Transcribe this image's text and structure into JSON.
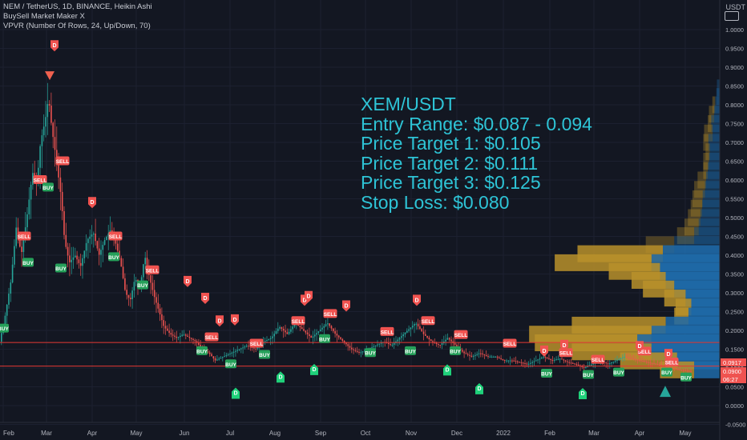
{
  "legend": {
    "symbol_line": "NEM / TetherUS, 1D, BINANCE, Heikin Ashi",
    "indicator1": "BuySell Market Maker X",
    "indicator2": "VPVR (Number Of Rows, 24, Up/Down, 70)"
  },
  "overlay": {
    "pair": "XEM/USDT",
    "entry": "Entry Range: $0.087 - 0.094",
    "pt1": "Price Target 1: $0.105",
    "pt2": "Price Target 2: $0.111",
    "pt3": "Price Target 3: $0.125",
    "stop": "Stop Loss: $0.080"
  },
  "currency": "USDT",
  "colors": {
    "background": "#131722",
    "up": "#26a69a",
    "down": "#ef5350",
    "text": "#2ec4d6",
    "vpvr_up": "#1e6aa8",
    "vpvr_down": "#b8902a",
    "sell_label": "#f05350",
    "buy_label": "#26a05a",
    "hline": "#e53935"
  },
  "chart_data": {
    "type": "candlestick",
    "y_ticks": [
      "1.0000",
      "0.9500",
      "0.9000",
      "0.8500",
      "0.8000",
      "0.7500",
      "0.7000",
      "0.6500",
      "0.6000",
      "0.5500",
      "0.5000",
      "0.4500",
      "0.4000",
      "0.3500",
      "0.3000",
      "0.2500",
      "0.2000",
      "0.1500",
      "0.1000",
      "0.0500",
      "0.0000",
      "-0.0500"
    ],
    "ylim": [
      -0.06,
      1.04
    ],
    "x_labels": [
      "Feb",
      "Mar",
      "Apr",
      "May",
      "Jun",
      "Jul",
      "Aug",
      "Sep",
      "Oct",
      "Nov",
      "Dec",
      "2022",
      "Feb",
      "Mar",
      "Apr",
      "May"
    ],
    "price_labels": [
      {
        "value": 0.0917,
        "text": "0.0917",
        "color": "#ef5350"
      },
      {
        "value": 0.09,
        "text": "0.0900",
        "color": "#ef5350"
      },
      {
        "value": 0.0743,
        "text": "06:27",
        "color": "#ef5350"
      }
    ],
    "hlines": [
      0.1677,
      0.105
    ],
    "price_path": [
      [
        0,
        0.16
      ],
      [
        8,
        0.24
      ],
      [
        15,
        0.33
      ],
      [
        22,
        0.48
      ],
      [
        28,
        0.4
      ],
      [
        35,
        0.5
      ],
      [
        42,
        0.62
      ],
      [
        48,
        0.6
      ],
      [
        52,
        0.7
      ],
      [
        58,
        0.76
      ],
      [
        62,
        0.82
      ],
      [
        66,
        0.74
      ],
      [
        72,
        0.65
      ],
      [
        78,
        0.55
      ],
      [
        82,
        0.44
      ],
      [
        88,
        0.38
      ],
      [
        95,
        0.4
      ],
      [
        102,
        0.37
      ],
      [
        110,
        0.44
      ],
      [
        118,
        0.46
      ],
      [
        125,
        0.4
      ],
      [
        132,
        0.44
      ],
      [
        140,
        0.47
      ],
      [
        146,
        0.43
      ],
      [
        152,
        0.38
      ],
      [
        158,
        0.3
      ],
      [
        164,
        0.28
      ],
      [
        170,
        0.34
      ],
      [
        176,
        0.31
      ],
      [
        182,
        0.4
      ],
      [
        188,
        0.34
      ],
      [
        194,
        0.29
      ],
      [
        200,
        0.25
      ],
      [
        206,
        0.21
      ],
      [
        214,
        0.19
      ],
      [
        222,
        0.18
      ],
      [
        230,
        0.19
      ],
      [
        238,
        0.18
      ],
      [
        246,
        0.17
      ],
      [
        254,
        0.15
      ],
      [
        262,
        0.14
      ],
      [
        270,
        0.12
      ],
      [
        280,
        0.13
      ],
      [
        290,
        0.14
      ],
      [
        300,
        0.15
      ],
      [
        310,
        0.16
      ],
      [
        320,
        0.15
      ],
      [
        330,
        0.17
      ],
      [
        340,
        0.18
      ],
      [
        350,
        0.21
      ],
      [
        360,
        0.19
      ],
      [
        370,
        0.22
      ],
      [
        380,
        0.2
      ],
      [
        390,
        0.18
      ],
      [
        400,
        0.2
      ],
      [
        410,
        0.22
      ],
      [
        420,
        0.19
      ],
      [
        430,
        0.17
      ],
      [
        440,
        0.15
      ],
      [
        450,
        0.14
      ],
      [
        460,
        0.15
      ],
      [
        470,
        0.16
      ],
      [
        480,
        0.17
      ],
      [
        490,
        0.16
      ],
      [
        500,
        0.18
      ],
      [
        510,
        0.2
      ],
      [
        520,
        0.22
      ],
      [
        530,
        0.19
      ],
      [
        540,
        0.17
      ],
      [
        550,
        0.16
      ],
      [
        560,
        0.18
      ],
      [
        570,
        0.16
      ],
      [
        580,
        0.14
      ],
      [
        590,
        0.13
      ],
      [
        600,
        0.14
      ],
      [
        610,
        0.13
      ],
      [
        620,
        0.13
      ],
      [
        630,
        0.12
      ],
      [
        640,
        0.12
      ],
      [
        650,
        0.115
      ],
      [
        660,
        0.11
      ],
      [
        670,
        0.12
      ],
      [
        680,
        0.13
      ],
      [
        690,
        0.12
      ],
      [
        700,
        0.125
      ],
      [
        710,
        0.115
      ],
      [
        720,
        0.11
      ],
      [
        730,
        0.1
      ],
      [
        740,
        0.11
      ],
      [
        750,
        0.12
      ],
      [
        760,
        0.11
      ],
      [
        770,
        0.12
      ],
      [
        780,
        0.13
      ],
      [
        790,
        0.125
      ],
      [
        800,
        0.12
      ],
      [
        810,
        0.115
      ],
      [
        820,
        0.11
      ],
      [
        830,
        0.105
      ],
      [
        840,
        0.1
      ],
      [
        850,
        0.095
      ],
      [
        862,
        0.0917
      ]
    ],
    "vpvr": [
      {
        "price": 0.845,
        "up": 0.01,
        "down": 0.0
      },
      {
        "price": 0.822,
        "up": 0.012,
        "down": 0.0
      },
      {
        "price": 0.8,
        "up": 0.016,
        "down": 0.01
      },
      {
        "price": 0.775,
        "up": 0.02,
        "down": 0.018
      },
      {
        "price": 0.75,
        "up": 0.03,
        "down": 0.012
      },
      {
        "price": 0.725,
        "up": 0.025,
        "down": 0.03
      },
      {
        "price": 0.7,
        "up": 0.04,
        "down": 0.018
      },
      {
        "price": 0.675,
        "up": 0.035,
        "down": 0.015
      },
      {
        "price": 0.65,
        "up": 0.038,
        "down": 0.02
      },
      {
        "price": 0.625,
        "up": 0.042,
        "down": 0.016
      },
      {
        "price": 0.6,
        "up": 0.048,
        "down": 0.03
      },
      {
        "price": 0.575,
        "up": 0.052,
        "down": 0.038
      },
      {
        "price": 0.55,
        "up": 0.06,
        "down": 0.036
      },
      {
        "price": 0.525,
        "up": 0.062,
        "down": 0.04
      },
      {
        "price": 0.5,
        "up": 0.068,
        "down": 0.044
      },
      {
        "price": 0.475,
        "up": 0.074,
        "down": 0.05
      },
      {
        "price": 0.452,
        "up": 0.09,
        "down": 0.06
      },
      {
        "price": 0.428,
        "up": 0.16,
        "down": 0.1
      },
      {
        "price": 0.404,
        "up": 0.2,
        "down": 0.3
      },
      {
        "price": 0.38,
        "up": 0.24,
        "down": 0.34
      },
      {
        "price": 0.357,
        "up": 0.21,
        "down": 0.18
      },
      {
        "price": 0.333,
        "up": 0.19,
        "down": 0.12
      },
      {
        "price": 0.31,
        "up": 0.16,
        "down": 0.11
      },
      {
        "price": 0.286,
        "up": 0.12,
        "down": 0.075
      },
      {
        "price": 0.262,
        "up": 0.1,
        "down": 0.055
      },
      {
        "price": 0.238,
        "up": 0.11,
        "down": 0.05
      },
      {
        "price": 0.214,
        "up": 0.19,
        "down": 0.33
      },
      {
        "price": 0.19,
        "up": 0.24,
        "down": 0.43
      },
      {
        "price": 0.167,
        "up": 0.29,
        "down": 0.36
      },
      {
        "price": 0.143,
        "up": 0.24,
        "down": 0.28
      },
      {
        "price": 0.119,
        "up": 0.15,
        "down": 0.2
      },
      {
        "price": 0.095,
        "up": 0.09,
        "down": 0.12
      }
    ],
    "signals": [
      {
        "x": 4,
        "price": 0.205,
        "text": "BUY",
        "kind": "buy"
      },
      {
        "x": 30,
        "price": 0.45,
        "text": "SELL",
        "kind": "sell"
      },
      {
        "x": 35,
        "price": 0.38,
        "text": "BUY",
        "kind": "buy"
      },
      {
        "x": 50,
        "price": 0.6,
        "text": "SELL",
        "kind": "sell"
      },
      {
        "x": 60,
        "price": 0.58,
        "text": "BUY",
        "kind": "buy"
      },
      {
        "x": 78,
        "price": 0.65,
        "text": "SELL",
        "kind": "sell"
      },
      {
        "x": 76,
        "price": 0.365,
        "text": "BUY",
        "kind": "buy"
      },
      {
        "x": 144,
        "price": 0.45,
        "text": "SELL",
        "kind": "sell"
      },
      {
        "x": 142,
        "price": 0.395,
        "text": "BUY",
        "kind": "buy"
      },
      {
        "x": 190,
        "price": 0.36,
        "text": "SELL",
        "kind": "sell"
      },
      {
        "x": 178,
        "price": 0.32,
        "text": "BUY",
        "kind": "buy"
      },
      {
        "x": 264,
        "price": 0.182,
        "text": "SELL",
        "kind": "sell"
      },
      {
        "x": 252,
        "price": 0.145,
        "text": "BUY",
        "kind": "buy"
      },
      {
        "x": 320,
        "price": 0.165,
        "text": "SELL",
        "kind": "sell"
      },
      {
        "x": 288,
        "price": 0.11,
        "text": "BUY",
        "kind": "buy"
      },
      {
        "x": 330,
        "price": 0.135,
        "text": "BUY",
        "kind": "buy"
      },
      {
        "x": 372,
        "price": 0.225,
        "text": "SELL",
        "kind": "sell"
      },
      {
        "x": 412,
        "price": 0.244,
        "text": "SELL",
        "kind": "sell"
      },
      {
        "x": 405,
        "price": 0.177,
        "text": "BUY",
        "kind": "buy"
      },
      {
        "x": 462,
        "price": 0.14,
        "text": "BUY",
        "kind": "buy"
      },
      {
        "x": 483,
        "price": 0.196,
        "text": "SELL",
        "kind": "sell"
      },
      {
        "x": 512,
        "price": 0.145,
        "text": "BUY",
        "kind": "buy"
      },
      {
        "x": 534,
        "price": 0.225,
        "text": "SELL",
        "kind": "sell"
      },
      {
        "x": 575,
        "price": 0.188,
        "text": "SELL",
        "kind": "sell"
      },
      {
        "x": 568,
        "price": 0.145,
        "text": "BUY",
        "kind": "buy"
      },
      {
        "x": 636,
        "price": 0.165,
        "text": "SELL",
        "kind": "sell"
      },
      {
        "x": 706,
        "price": 0.14,
        "text": "SELL",
        "kind": "sell"
      },
      {
        "x": 682,
        "price": 0.085,
        "text": "BUY",
        "kind": "buy"
      },
      {
        "x": 746,
        "price": 0.122,
        "text": "SELL",
        "kind": "sell"
      },
      {
        "x": 734,
        "price": 0.082,
        "text": "BUY",
        "kind": "buy"
      },
      {
        "x": 772,
        "price": 0.088,
        "text": "BUY",
        "kind": "buy"
      },
      {
        "x": 804,
        "price": 0.144,
        "text": "SELL",
        "kind": "sell"
      },
      {
        "x": 838,
        "price": 0.115,
        "text": "SELL",
        "kind": "sell"
      },
      {
        "x": 832,
        "price": 0.088,
        "text": "BUY",
        "kind": "buy"
      },
      {
        "x": 856,
        "price": 0.075,
        "text": "BUY",
        "kind": "buy"
      }
    ],
    "markers_d": [
      {
        "x": 68,
        "price": 0.957,
        "kind": "down"
      },
      {
        "x": 115,
        "price": 0.54,
        "kind": "down"
      },
      {
        "x": 234,
        "price": 0.33,
        "kind": "down"
      },
      {
        "x": 256,
        "price": 0.285,
        "kind": "down"
      },
      {
        "x": 274,
        "price": 0.225,
        "kind": "down"
      },
      {
        "x": 293,
        "price": 0.228,
        "kind": "down"
      },
      {
        "x": 380,
        "price": 0.28,
        "kind": "down"
      },
      {
        "x": 385,
        "price": 0.29,
        "kind": "down"
      },
      {
        "x": 432,
        "price": 0.265,
        "kind": "down"
      },
      {
        "x": 520,
        "price": 0.28,
        "kind": "down"
      },
      {
        "x": 679,
        "price": 0.145,
        "kind": "down"
      },
      {
        "x": 704,
        "price": 0.16,
        "kind": "down"
      },
      {
        "x": 798,
        "price": 0.157,
        "kind": "down"
      },
      {
        "x": 834,
        "price": 0.136,
        "kind": "down"
      },
      {
        "x": 294,
        "price": 0.033,
        "kind": "up"
      },
      {
        "x": 350,
        "price": 0.076,
        "kind": "up"
      },
      {
        "x": 392,
        "price": 0.096,
        "kind": "up"
      },
      {
        "x": 558,
        "price": 0.095,
        "kind": "up"
      },
      {
        "x": 598,
        "price": 0.045,
        "kind": "up"
      },
      {
        "x": 727,
        "price": 0.032,
        "kind": "up"
      }
    ],
    "triangles": [
      {
        "x": 62,
        "price": 0.87,
        "kind": "down"
      },
      {
        "x": 830,
        "price": 0.038,
        "kind": "up"
      }
    ]
  }
}
